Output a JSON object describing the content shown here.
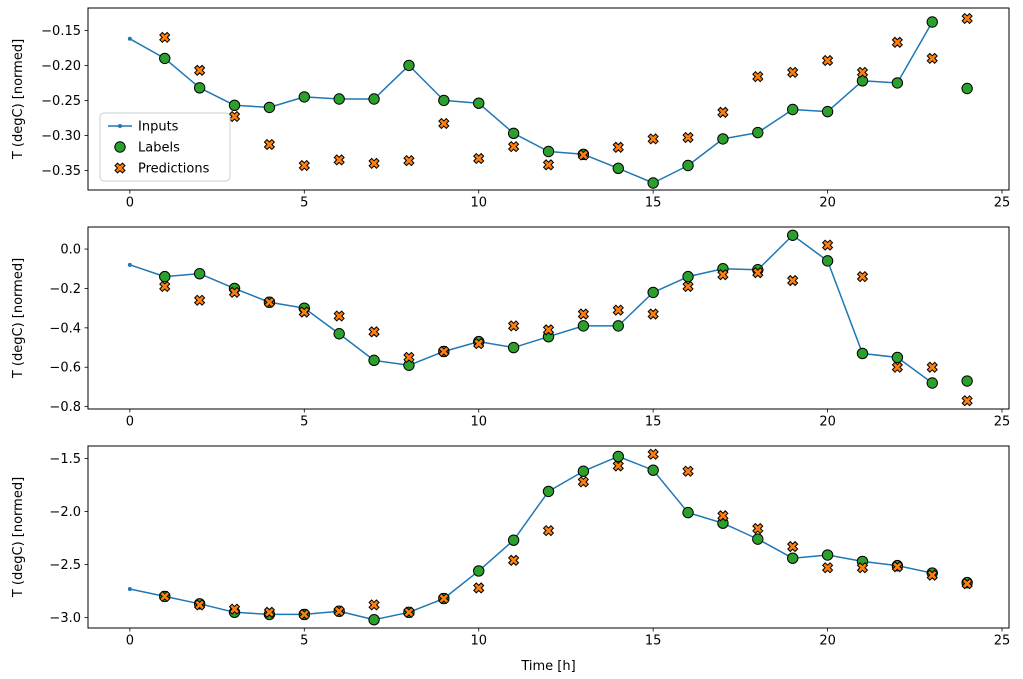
{
  "figure": {
    "xlabel": "Time [h]",
    "ylabel": "T (degC) [normed]",
    "background": "#ffffff",
    "colors": {
      "inputs": "#1f77b4",
      "labels": "#2ca02c",
      "predictions": "#ff7f0e",
      "marker_edge": "#000000",
      "axis": "#000000",
      "legend_border": "#cccccc"
    },
    "legend": {
      "items": [
        {
          "label": "Inputs",
          "marker": "line-dot",
          "color": "#1f77b4"
        },
        {
          "label": "Labels",
          "marker": "circle",
          "color": "#2ca02c"
        },
        {
          "label": "Predictions",
          "marker": "x",
          "color": "#ff7f0e"
        }
      ]
    }
  },
  "chart_data": [
    {
      "type": "line",
      "title": "",
      "xlabel": "",
      "ylabel": "T (degC) [normed]",
      "xlim": [
        -1.2,
        25.2
      ],
      "ylim": [
        -0.378,
        -0.118
      ],
      "xticks": [
        0,
        5,
        10,
        15,
        20,
        25
      ],
      "xtick_labels": [
        "0",
        "5",
        "10",
        "15",
        "20",
        "25"
      ],
      "yticks": [
        -0.15,
        -0.2,
        -0.25,
        -0.3,
        -0.35
      ],
      "ytick_labels": [
        "−0.15",
        "−0.20",
        "−0.25",
        "−0.30",
        "−0.35"
      ],
      "legend": true,
      "series": [
        {
          "name": "Inputs",
          "type": "line-dot",
          "color": "#1f77b4",
          "x": [
            0,
            1,
            2,
            3,
            4,
            5,
            6,
            7,
            8,
            9,
            10,
            11,
            12,
            13,
            14,
            15,
            16,
            17,
            18,
            19,
            20,
            21,
            22,
            23
          ],
          "y": [
            -0.162,
            -0.19,
            -0.232,
            -0.257,
            -0.26,
            -0.245,
            -0.248,
            -0.248,
            -0.2,
            -0.25,
            -0.254,
            -0.297,
            -0.323,
            -0.327,
            -0.347,
            -0.368,
            -0.343,
            -0.305,
            -0.296,
            -0.263,
            -0.266,
            -0.222,
            -0.225,
            -0.138
          ]
        },
        {
          "name": "Labels",
          "type": "scatter-circle",
          "color": "#2ca02c",
          "edge": "#000000",
          "x": [
            1,
            2,
            3,
            4,
            5,
            6,
            7,
            8,
            9,
            10,
            11,
            12,
            13,
            14,
            15,
            16,
            17,
            18,
            19,
            20,
            21,
            22,
            23,
            24
          ],
          "y": [
            -0.19,
            -0.232,
            -0.257,
            -0.26,
            -0.245,
            -0.248,
            -0.248,
            -0.2,
            -0.25,
            -0.254,
            -0.297,
            -0.323,
            -0.327,
            -0.347,
            -0.368,
            -0.343,
            -0.305,
            -0.296,
            -0.263,
            -0.266,
            -0.222,
            -0.225,
            -0.138,
            -0.233
          ]
        },
        {
          "name": "Predictions",
          "type": "scatter-x",
          "color": "#ff7f0e",
          "edge": "#000000",
          "x": [
            1,
            2,
            3,
            4,
            5,
            6,
            7,
            8,
            9,
            10,
            11,
            12,
            13,
            14,
            15,
            16,
            17,
            18,
            19,
            20,
            21,
            22,
            23,
            24
          ],
          "y": [
            -0.16,
            -0.207,
            -0.273,
            -0.313,
            -0.343,
            -0.335,
            -0.34,
            -0.336,
            -0.283,
            -0.333,
            -0.316,
            -0.342,
            -0.328,
            -0.317,
            -0.305,
            -0.303,
            -0.267,
            -0.216,
            -0.21,
            -0.193,
            -0.21,
            -0.167,
            -0.19,
            -0.133
          ]
        }
      ]
    },
    {
      "type": "line",
      "title": "",
      "xlabel": "",
      "ylabel": "T (degC) [normed]",
      "xlim": [
        -1.2,
        25.2
      ],
      "ylim": [
        -0.812,
        0.112
      ],
      "xticks": [
        0,
        5,
        10,
        15,
        20,
        25
      ],
      "xtick_labels": [
        "0",
        "5",
        "10",
        "15",
        "20",
        "25"
      ],
      "yticks": [
        0.0,
        -0.2,
        -0.4,
        -0.6,
        -0.8
      ],
      "ytick_labels": [
        "0.0",
        "−0.2",
        "−0.4",
        "−0.6",
        "−0.8"
      ],
      "legend": false,
      "series": [
        {
          "name": "Inputs",
          "type": "line-dot",
          "color": "#1f77b4",
          "x": [
            0,
            1,
            2,
            3,
            4,
            5,
            6,
            7,
            8,
            9,
            10,
            11,
            12,
            13,
            14,
            15,
            16,
            17,
            18,
            19,
            20,
            21,
            22,
            23
          ],
          "y": [
            -0.08,
            -0.14,
            -0.125,
            -0.2,
            -0.27,
            -0.3,
            -0.43,
            -0.565,
            -0.59,
            -0.52,
            -0.47,
            -0.5,
            -0.445,
            -0.39,
            -0.39,
            -0.22,
            -0.14,
            -0.1,
            -0.105,
            0.07,
            -0.06,
            -0.53,
            -0.55,
            -0.68
          ]
        },
        {
          "name": "Labels",
          "type": "scatter-circle",
          "color": "#2ca02c",
          "edge": "#000000",
          "x": [
            1,
            2,
            3,
            4,
            5,
            6,
            7,
            8,
            9,
            10,
            11,
            12,
            13,
            14,
            15,
            16,
            17,
            18,
            19,
            20,
            21,
            22,
            23,
            24
          ],
          "y": [
            -0.14,
            -0.125,
            -0.2,
            -0.27,
            -0.3,
            -0.43,
            -0.565,
            -0.59,
            -0.52,
            -0.47,
            -0.5,
            -0.445,
            -0.39,
            -0.39,
            -0.22,
            -0.14,
            -0.1,
            -0.105,
            0.07,
            -0.06,
            -0.53,
            -0.55,
            -0.68,
            -0.67
          ]
        },
        {
          "name": "Predictions",
          "type": "scatter-x",
          "color": "#ff7f0e",
          "edge": "#000000",
          "x": [
            1,
            2,
            3,
            4,
            5,
            6,
            7,
            8,
            9,
            10,
            11,
            12,
            13,
            14,
            15,
            16,
            17,
            18,
            19,
            20,
            21,
            22,
            23,
            24
          ],
          "y": [
            -0.19,
            -0.26,
            -0.22,
            -0.27,
            -0.32,
            -0.34,
            -0.42,
            -0.55,
            -0.52,
            -0.48,
            -0.39,
            -0.41,
            -0.33,
            -0.31,
            -0.33,
            -0.19,
            -0.13,
            -0.12,
            -0.16,
            0.02,
            -0.14,
            -0.6,
            -0.6,
            -0.77
          ]
        }
      ]
    },
    {
      "type": "line",
      "title": "",
      "xlabel": "Time [h]",
      "ylabel": "T (degC) [normed]",
      "xlim": [
        -1.2,
        25.2
      ],
      "ylim": [
        -3.098,
        -1.382
      ],
      "xticks": [
        0,
        5,
        10,
        15,
        20,
        25
      ],
      "xtick_labels": [
        "0",
        "5",
        "10",
        "15",
        "20",
        "25"
      ],
      "yticks": [
        -1.5,
        -2.0,
        -2.5,
        -3.0
      ],
      "ytick_labels": [
        "−1.5",
        "−2.0",
        "−2.5",
        "−3.0"
      ],
      "legend": false,
      "series": [
        {
          "name": "Inputs",
          "type": "line-dot",
          "color": "#1f77b4",
          "x": [
            0,
            1,
            2,
            3,
            4,
            5,
            6,
            7,
            8,
            9,
            10,
            11,
            12,
            13,
            14,
            15,
            16,
            17,
            18,
            19,
            20,
            21,
            22,
            23
          ],
          "y": [
            -2.73,
            -2.8,
            -2.87,
            -2.95,
            -2.97,
            -2.97,
            -2.94,
            -3.02,
            -2.95,
            -2.82,
            -2.56,
            -2.27,
            -1.81,
            -1.62,
            -1.48,
            -1.61,
            -2.01,
            -2.11,
            -2.26,
            -2.44,
            -2.41,
            -2.47,
            -2.51,
            -2.58
          ]
        },
        {
          "name": "Labels",
          "type": "scatter-circle",
          "color": "#2ca02c",
          "edge": "#000000",
          "x": [
            1,
            2,
            3,
            4,
            5,
            6,
            7,
            8,
            9,
            10,
            11,
            12,
            13,
            14,
            15,
            16,
            17,
            18,
            19,
            20,
            21,
            22,
            23,
            24
          ],
          "y": [
            -2.8,
            -2.87,
            -2.95,
            -2.97,
            -2.97,
            -2.94,
            -3.02,
            -2.95,
            -2.82,
            -2.56,
            -2.27,
            -1.81,
            -1.62,
            -1.48,
            -1.61,
            -2.01,
            -2.11,
            -2.26,
            -2.44,
            -2.41,
            -2.47,
            -2.51,
            -2.58,
            -2.67
          ]
        },
        {
          "name": "Predictions",
          "type": "scatter-x",
          "color": "#ff7f0e",
          "edge": "#000000",
          "x": [
            1,
            2,
            3,
            4,
            5,
            6,
            7,
            8,
            9,
            10,
            11,
            12,
            13,
            14,
            15,
            16,
            17,
            18,
            19,
            20,
            21,
            22,
            23,
            24
          ],
          "y": [
            -2.8,
            -2.88,
            -2.92,
            -2.95,
            -2.97,
            -2.94,
            -2.88,
            -2.95,
            -2.82,
            -2.72,
            -2.46,
            -2.18,
            -1.72,
            -1.57,
            -1.46,
            -1.62,
            -2.04,
            -2.16,
            -2.33,
            -2.53,
            -2.53,
            -2.52,
            -2.6,
            -2.68
          ]
        }
      ]
    }
  ]
}
